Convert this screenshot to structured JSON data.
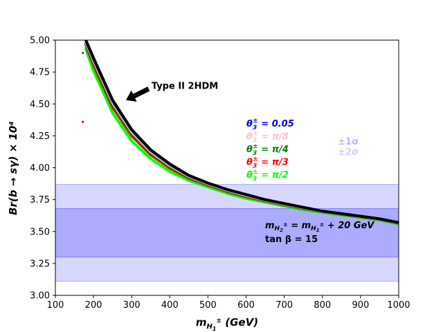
{
  "chart_data": {
    "type": "line",
    "title": "",
    "xlabel": "m_{H1±} (GeV)",
    "xlabel_main": "m",
    "xlabel_sub": "H",
    "xlabel_subsub": "1",
    "xlabel_sup": "±",
    "xlabel_unit": " (GeV)",
    "ylabel": "Br(b → sγ) × 10⁴",
    "xlim": [
      100,
      1000
    ],
    "ylim": [
      3.0,
      5.0
    ],
    "xticks": [
      100,
      200,
      300,
      400,
      500,
      600,
      700,
      800,
      900,
      1000
    ],
    "yticks": [
      "3.00",
      "3.25",
      "3.50",
      "3.75",
      "4.00",
      "4.25",
      "4.50",
      "4.75",
      "5.00"
    ],
    "grid": false,
    "bands": [
      {
        "name": "±2σ",
        "range": [
          3.11,
          3.87
        ],
        "color": "#b0b0ff"
      },
      {
        "name": "±1σ",
        "range": [
          3.3,
          3.68
        ],
        "color": "#8080ff"
      }
    ],
    "series": [
      {
        "name": "θ3± = π/2",
        "theta": "π/2",
        "color": "#00ff00",
        "k": 0.0
      },
      {
        "name": "θ3± = π/3",
        "theta": "π/3",
        "color": "#ff0000",
        "k": 0.45
      },
      {
        "name": "θ3± = π/4",
        "theta": "π/4",
        "color": "#008000",
        "k": 0.62
      },
      {
        "name": "θ3± = π/8",
        "theta": "π/8",
        "color": "#ffc0cb",
        "k": 0.8
      },
      {
        "name": "θ3± = 0.05",
        "theta": "0.05",
        "color": "#0000ff",
        "k": 0.95
      },
      {
        "name": "Type II 2HDM",
        "theta": "",
        "color": "#000000",
        "k": 1.0
      }
    ],
    "curve_x": [
      180,
      200,
      250,
      300,
      350,
      400,
      450,
      500,
      550,
      600,
      650,
      700,
      750,
      800,
      850,
      900,
      950,
      1000
    ],
    "curve_y_low": [
      4.93,
      4.76,
      4.43,
      4.21,
      4.07,
      3.97,
      3.9,
      3.85,
      3.8,
      3.76,
      3.73,
      3.7,
      3.67,
      3.65,
      3.63,
      3.61,
      3.59,
      3.56
    ],
    "curve_y_high": [
      5.0,
      4.86,
      4.53,
      4.3,
      4.14,
      4.03,
      3.94,
      3.88,
      3.83,
      3.79,
      3.75,
      3.72,
      3.69,
      3.66,
      3.64,
      3.62,
      3.6,
      3.57
    ],
    "points": [
      {
        "x": 172,
        "y": 4.9,
        "color": "#008000"
      },
      {
        "x": 172,
        "y": 4.36,
        "color": "#ff0000"
      }
    ],
    "annotation": {
      "text": "Type II 2HDM",
      "x": 352,
      "y": 4.64,
      "arrow_to_x": 285,
      "arrow_to_y": 4.53
    },
    "legend_entries": [
      {
        "theta_label": "θ",
        "sub": "3",
        "sup": "±",
        "value": " = 0.05",
        "color": "#0000ff"
      },
      {
        "theta_label": "θ",
        "sub": "3",
        "sup": "±",
        "value": " = π/8",
        "color": "#ffc0cb"
      },
      {
        "theta_label": "θ",
        "sub": "3",
        "sup": "±",
        "value": " = π/4",
        "color": "#008000"
      },
      {
        "theta_label": "θ",
        "sub": "3",
        "sup": "±",
        "value": " = π/3",
        "color": "#ff0000"
      },
      {
        "theta_label": "θ",
        "sub": "3",
        "sup": "±",
        "value": " = π/2",
        "color": "#00ff00"
      }
    ],
    "band_labels": [
      {
        "text": "±1σ",
        "color": "#b8b8ff"
      },
      {
        "text": "±2σ",
        "color": "#d0d0ff"
      }
    ],
    "relation": {
      "lhs_main": "m",
      "lhs_sub": "H",
      "lhs_subsub": "2",
      "lhs_sup": "±",
      "eq": " = m",
      "rhs_sub": "H",
      "rhs_subsub": "1",
      "rhs_sup": "±",
      "rhs_tail": " + 20 GeV"
    },
    "tanbeta": "tan β = 15"
  }
}
